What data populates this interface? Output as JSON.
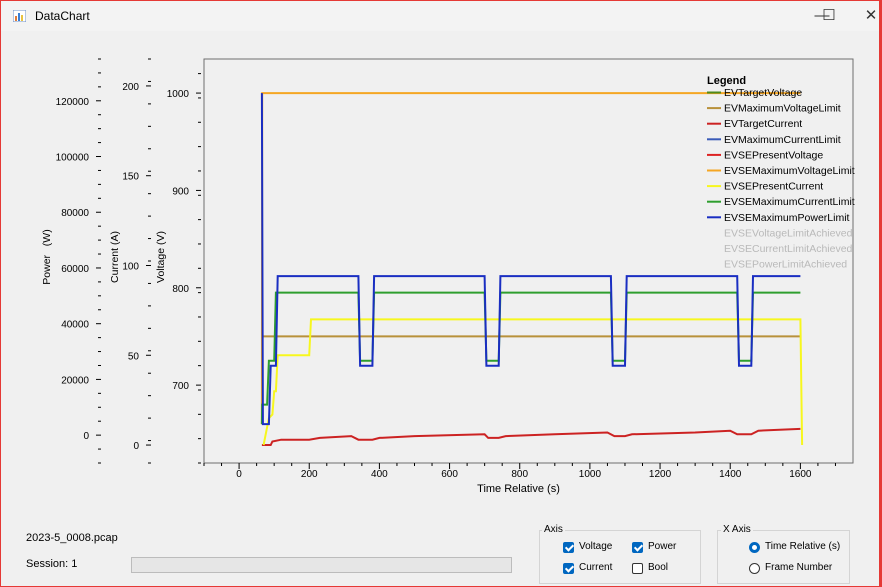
{
  "window": {
    "title": "DataChart",
    "controls": {
      "minimize": "—",
      "maximize": "☐",
      "close": "✕"
    }
  },
  "colors": {
    "accent": "#0067c0",
    "window_border": "#e53935"
  },
  "chart_data": {
    "type": "line",
    "xlabel": "Time Relative (s)",
    "xlim": [
      -100,
      1750
    ],
    "xticks": [
      0,
      200,
      400,
      600,
      800,
      1000,
      1200,
      1400,
      1600
    ],
    "axes": [
      {
        "id": "power",
        "label": "Power   (W)",
        "ylim": [
          -10000,
          135000
        ],
        "ticks": [
          0,
          20000,
          40000,
          60000,
          80000,
          100000,
          120000
        ]
      },
      {
        "id": "current",
        "label": "Current (A)",
        "ylim": [
          -10,
          215
        ],
        "ticks": [
          0,
          50,
          100,
          150,
          200
        ]
      },
      {
        "id": "voltage",
        "label": "Voltage (V)",
        "ylim": [
          620,
          1035
        ],
        "ticks": [
          700,
          800,
          900,
          1000
        ]
      }
    ],
    "legend_title": "Legend",
    "legend_position": "top-right",
    "series": [
      {
        "name": "EVTargetVoltage",
        "color": "#4d8a1e",
        "axis": "voltage",
        "points": []
      },
      {
        "name": "EVMaximumVoltageLimit",
        "color": "#b8913a",
        "axis": "voltage",
        "points": [
          [
            65,
            660
          ],
          [
            66,
            750
          ],
          [
            1600,
            750
          ]
        ]
      },
      {
        "name": "EVTargetCurrent",
        "color": "#cc2222",
        "axis": "current",
        "points": [
          [
            65,
            0
          ],
          [
            90,
            0
          ],
          [
            95,
            2
          ],
          [
            120,
            3
          ],
          [
            200,
            3
          ],
          [
            230,
            4
          ],
          [
            320,
            5
          ],
          [
            340,
            3
          ],
          [
            380,
            3
          ],
          [
            400,
            4
          ],
          [
            500,
            5
          ],
          [
            700,
            6
          ],
          [
            710,
            4
          ],
          [
            740,
            4
          ],
          [
            760,
            5
          ],
          [
            900,
            6
          ],
          [
            1050,
            7
          ],
          [
            1070,
            5
          ],
          [
            1100,
            5
          ],
          [
            1120,
            6
          ],
          [
            1300,
            7
          ],
          [
            1400,
            8
          ],
          [
            1420,
            6
          ],
          [
            1460,
            6
          ],
          [
            1480,
            8
          ],
          [
            1600,
            9
          ]
        ]
      },
      {
        "name": "EVMaximumCurrentLimit",
        "color": "#3a5bb8",
        "axis": "current",
        "points": []
      },
      {
        "name": "EVSEPresentVoltage",
        "color": "#dd2222",
        "axis": "current",
        "points": []
      },
      {
        "name": "EVSEMaximumVoltageLimit",
        "color": "#f5a623",
        "axis": "voltage",
        "points": [
          [
            65,
            660
          ],
          [
            66,
            1000
          ],
          [
            1600,
            1000
          ]
        ]
      },
      {
        "name": "EVSEPresentCurrent",
        "color": "#f7f71e",
        "axis": "current",
        "points": [
          [
            70,
            0
          ],
          [
            85,
            15
          ],
          [
            95,
            17
          ],
          [
            100,
            30
          ],
          [
            105,
            30
          ],
          [
            110,
            50
          ],
          [
            200,
            50
          ],
          [
            205,
            70
          ],
          [
            210,
            70
          ],
          [
            1600,
            70
          ],
          [
            1605,
            0
          ]
        ]
      },
      {
        "name": "EVSEMaximumCurrentLimit",
        "color": "#2e9e2e",
        "axis": "voltage",
        "points": [
          [
            65,
            660
          ],
          [
            66,
            680
          ],
          [
            80,
            680
          ],
          [
            85,
            725
          ],
          [
            100,
            725
          ],
          [
            105,
            795
          ],
          [
            340,
            795
          ],
          [
            345,
            725
          ],
          [
            380,
            725
          ],
          [
            385,
            795
          ],
          [
            700,
            795
          ],
          [
            705,
            725
          ],
          [
            740,
            725
          ],
          [
            745,
            795
          ],
          [
            1060,
            795
          ],
          [
            1065,
            725
          ],
          [
            1100,
            725
          ],
          [
            1105,
            795
          ],
          [
            1420,
            795
          ],
          [
            1425,
            725
          ],
          [
            1460,
            725
          ],
          [
            1465,
            795
          ],
          [
            1600,
            795
          ]
        ]
      },
      {
        "name": "EVSEMaximumPowerLimit",
        "color": "#1a2ec2",
        "axis": "voltage",
        "points": [
          [
            65,
            1000
          ],
          [
            68,
            660
          ],
          [
            85,
            660
          ],
          [
            90,
            720
          ],
          [
            105,
            720
          ],
          [
            110,
            812
          ],
          [
            340,
            812
          ],
          [
            345,
            720
          ],
          [
            380,
            720
          ],
          [
            385,
            812
          ],
          [
            700,
            812
          ],
          [
            705,
            720
          ],
          [
            740,
            720
          ],
          [
            745,
            812
          ],
          [
            1060,
            812
          ],
          [
            1065,
            720
          ],
          [
            1100,
            720
          ],
          [
            1105,
            812
          ],
          [
            1420,
            812
          ],
          [
            1425,
            720
          ],
          [
            1460,
            720
          ],
          [
            1465,
            812
          ],
          [
            1600,
            812
          ]
        ]
      },
      {
        "name": "EVSEVoltageLimitAchieved",
        "color": "#c8c8c8",
        "axis": "voltage",
        "points": []
      },
      {
        "name": "EVSECurrentLimitAchieved",
        "color": "#c8c8c8",
        "axis": "voltage",
        "points": []
      },
      {
        "name": "EVSEPowerLimitAchieved",
        "color": "#c8c8c8",
        "axis": "voltage",
        "points": []
      }
    ]
  },
  "bottom": {
    "file_name": "2023-5_0008.pcap",
    "session": "Session: 1",
    "progress": 0
  },
  "axis_group": {
    "title": "Axis",
    "options": [
      {
        "label": "Voltage",
        "checked": true
      },
      {
        "label": "Power",
        "checked": true
      },
      {
        "label": "Current",
        "checked": true
      },
      {
        "label": "Bool",
        "checked": false
      }
    ]
  },
  "xaxis_group": {
    "title": "X Axis",
    "options": [
      {
        "label": "Time Relative (s)",
        "selected": true
      },
      {
        "label": "Frame Number",
        "selected": false
      }
    ]
  }
}
